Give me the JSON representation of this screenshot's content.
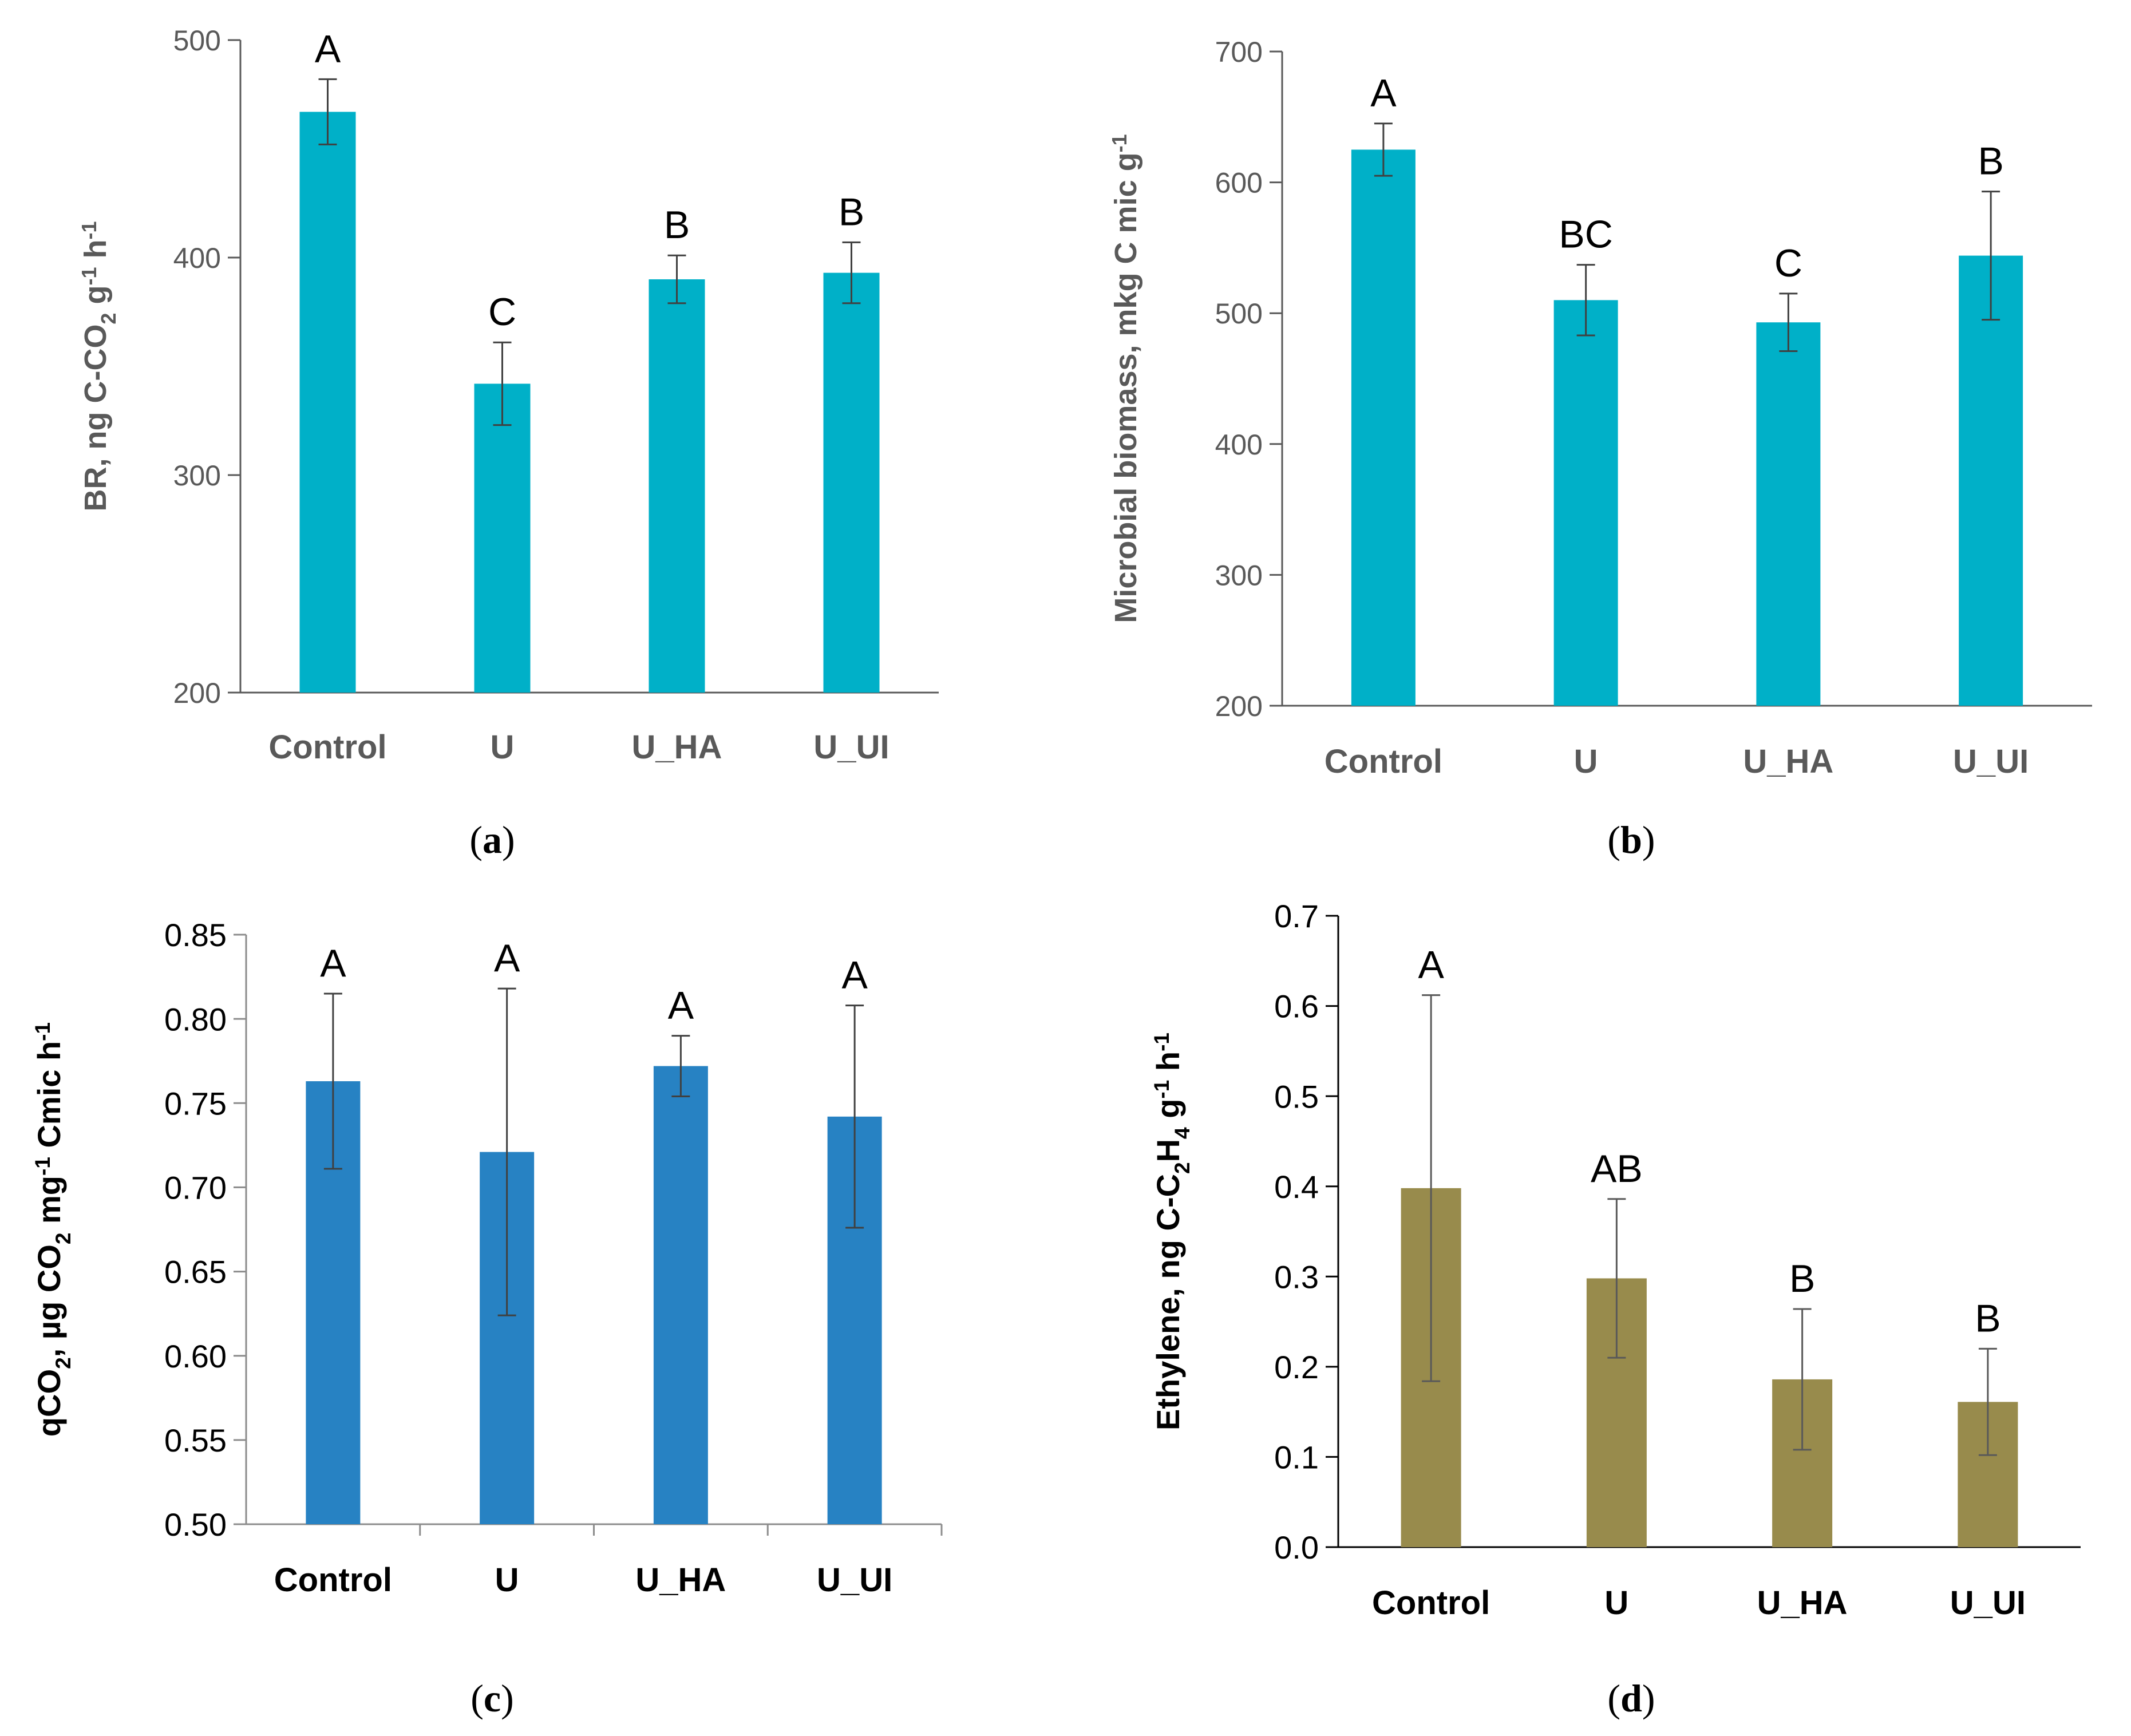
{
  "chart_data": [
    {
      "type": "bar",
      "panel": "a",
      "caption_letter": "a",
      "ylabel": {
        "pre": "BR, ng C-CO",
        "sub1": "2",
        "mid": " g",
        "sup1": "-1",
        "post": " h",
        "sup2": "-1"
      },
      "categories": [
        "Control",
        "U",
        "U_HA",
        "U_UI"
      ],
      "values": [
        467,
        342,
        390,
        393
      ],
      "errors": [
        15,
        19,
        11,
        14
      ],
      "significance": [
        "A",
        "C",
        "B",
        "B"
      ],
      "ylim": [
        200,
        500
      ],
      "yticks": [
        "200",
        "300",
        "400",
        "500"
      ],
      "color": "#00B0C8",
      "axis_color": "#595959",
      "label_color": "#595959"
    },
    {
      "type": "bar",
      "panel": "b",
      "caption_letter": "b",
      "ylabel": {
        "pre": "Microbial biomass, mkg C mic g",
        "sup1": "-1"
      },
      "categories": [
        "Control",
        "U",
        "U_HA",
        "U_UI"
      ],
      "values": [
        625,
        510,
        493,
        544
      ],
      "errors": [
        20,
        27,
        22,
        49
      ],
      "significance": [
        "A",
        "BC",
        "C",
        "B"
      ],
      "ylim": [
        200,
        700
      ],
      "yticks": [
        "200",
        "300",
        "400",
        "500",
        "600",
        "700"
      ],
      "color": "#00B0C8",
      "axis_color": "#595959",
      "label_color": "#595959"
    },
    {
      "type": "bar",
      "panel": "c",
      "caption_letter": "c",
      "ylabel": {
        "pre": "qCO",
        "sub1": "2",
        "mid": ", µg CO",
        "sub2": "2",
        "mid2": " mg",
        "sup1": "-1",
        "post": " Cmic h",
        "sup2": "-1"
      },
      "categories": [
        "Control",
        "U",
        "U_HA",
        "U_UI"
      ],
      "values": [
        0.763,
        0.721,
        0.772,
        0.742
      ],
      "errors": [
        0.052,
        0.097,
        0.018,
        0.066
      ],
      "significance": [
        "A",
        "A",
        "A",
        "A"
      ],
      "ylim": [
        0.5,
        0.85
      ],
      "yticks": [
        "0.50",
        "0.55",
        "0.60",
        "0.65",
        "0.70",
        "0.75",
        "0.80",
        "0.85"
      ],
      "color": "#2782C3",
      "axis_color": "#8C8C8C",
      "label_color": "#000000"
    },
    {
      "type": "bar",
      "panel": "d",
      "caption_letter": "d",
      "ylabel": {
        "pre": "Ethylene, ng C-C",
        "sub1": "2",
        "mid": "H",
        "sub2": "4",
        "mid2": " g",
        "sup1": "-1",
        "post": " h",
        "sup2": "-1"
      },
      "categories": [
        "Control",
        "U",
        "U_HA",
        "U_UI"
      ],
      "values": [
        0.398,
        0.298,
        0.186,
        0.161
      ],
      "errors": [
        0.214,
        0.088,
        0.078,
        0.059
      ],
      "significance": [
        "A",
        "AB",
        "B",
        "B"
      ],
      "ylim": [
        0.0,
        0.7
      ],
      "yticks": [
        "0.0",
        "0.1",
        "0.2",
        "0.3",
        "0.4",
        "0.5",
        "0.6",
        "0.7"
      ],
      "color": "#988B4C",
      "axis_color": "#000000",
      "label_color": "#000000"
    }
  ]
}
